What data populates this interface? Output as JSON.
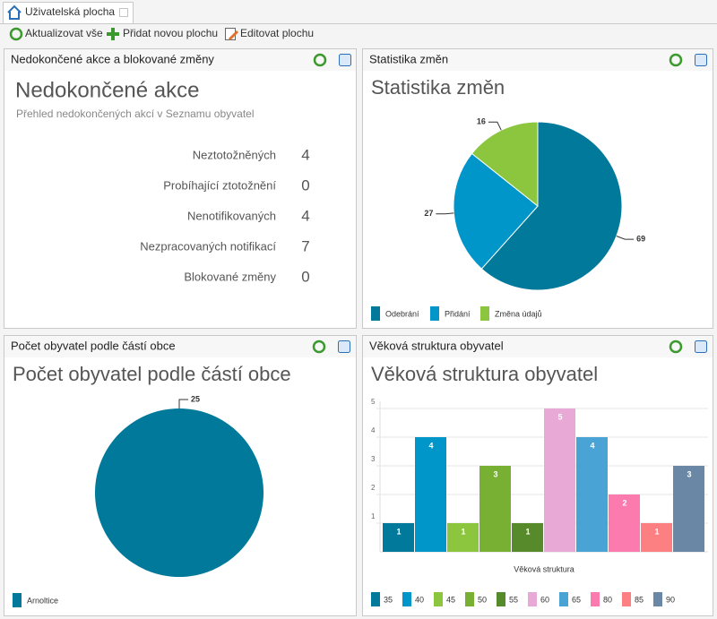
{
  "tab": {
    "title": "Uživatelská plocha"
  },
  "toolbar": [
    {
      "label": "Aktualizovat vše"
    },
    {
      "label": "Přidat novou plochu"
    },
    {
      "label": "Editovat plochu"
    }
  ],
  "summary": {
    "panel_title": "Nedokončené akce a blokované změny",
    "title": "Nedokončené akce",
    "subtitle": "Přehled nedokončených akcí v Seznamu obyvatel",
    "rows": [
      {
        "label": "Neztotožněných",
        "value": 4
      },
      {
        "label": "Probíhající ztotožnění",
        "value": 0
      },
      {
        "label": "Nenotifikovaných",
        "value": 4
      },
      {
        "label": "Nezpracovaných notifikací",
        "value": 7
      },
      {
        "label": "Blokované změny",
        "value": 0
      }
    ]
  },
  "chart_data": [
    {
      "type": "pie",
      "panel_title": "Statistika změn",
      "title": "Statistika změn",
      "categories": [
        "Odebrání",
        "Přidání",
        "Změna údajů"
      ],
      "values": [
        69,
        27,
        16
      ],
      "colors": [
        "#00799a",
        "#0096c9",
        "#8cc63f"
      ]
    },
    {
      "type": "pie",
      "panel_title": "Počet obyvatel podle částí obce",
      "title": "Počet obyvatel podle částí obce",
      "categories": [
        "Arnoltice"
      ],
      "values": [
        25
      ],
      "colors": [
        "#00799a"
      ]
    },
    {
      "type": "bar",
      "panel_title": "Věková struktura obyvatel",
      "title": "Věková struktura obyvatel",
      "x_label": "Věková struktura",
      "ylim": [
        0,
        5
      ],
      "yticks": [
        1,
        2,
        3,
        4,
        5
      ],
      "grid": true,
      "series": [
        {
          "name": "35",
          "color": "#00799a",
          "values": [
            1
          ]
        },
        {
          "name": "40",
          "color": "#0096c9",
          "values": [
            4
          ]
        },
        {
          "name": "45",
          "color": "#8cc63f",
          "values": [
            1
          ]
        },
        {
          "name": "50",
          "color": "#77b032",
          "values": [
            3
          ]
        },
        {
          "name": "55",
          "color": "#568a2a",
          "values": [
            1
          ]
        },
        {
          "name": "60",
          "color": "#e8a9d6",
          "values": [
            5
          ]
        },
        {
          "name": "65",
          "color": "#4aa3d5",
          "values": [
            4
          ]
        },
        {
          "name": "80",
          "color": "#fb7bae",
          "values": [
            2
          ]
        },
        {
          "name": "85",
          "color": "#fc8081",
          "values": [
            1
          ]
        },
        {
          "name": "90",
          "color": "#6a88a5",
          "values": [
            3
          ]
        }
      ]
    }
  ]
}
